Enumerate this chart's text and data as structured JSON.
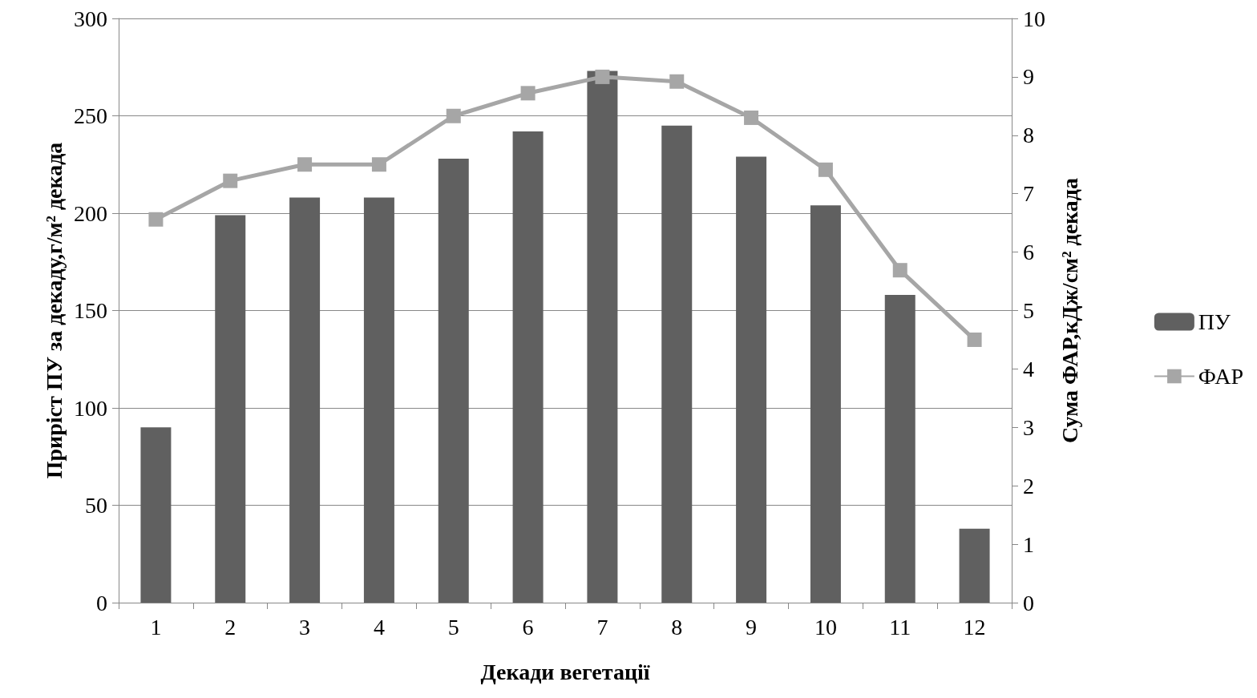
{
  "chart_data": {
    "type": "bar",
    "xlabel": "Декади вегетації",
    "ylabel": "Приріст ПУ за декаду,г/м² декада",
    "y2label": "Сума ФАР,кДж/см² декада",
    "categories": [
      "1",
      "2",
      "3",
      "4",
      "5",
      "6",
      "7",
      "8",
      "9",
      "10",
      "11",
      "12"
    ],
    "series": [
      {
        "name": "ПУ",
        "color": "#606060",
        "values": [
          90,
          199,
          208,
          208,
          228,
          242,
          273,
          245,
          229,
          204,
          158,
          38
        ]
      },
      {
        "name": "ФАР",
        "type": "line",
        "axis": "y2",
        "color": "#a6a6a6",
        "marker": "square",
        "values": [
          6.56,
          7.22,
          7.5,
          7.5,
          8.33,
          8.72,
          9.0,
          8.92,
          8.3,
          7.41,
          5.69,
          4.5
        ]
      }
    ],
    "ylim": [
      0,
      300
    ],
    "yticks": [
      0,
      50,
      100,
      150,
      200,
      250,
      300
    ],
    "y2lim": [
      0,
      10
    ],
    "y2ticks": [
      0,
      1,
      2,
      3,
      4,
      5,
      6,
      7,
      8,
      9,
      10
    ],
    "grid": "y",
    "legend": "right"
  }
}
